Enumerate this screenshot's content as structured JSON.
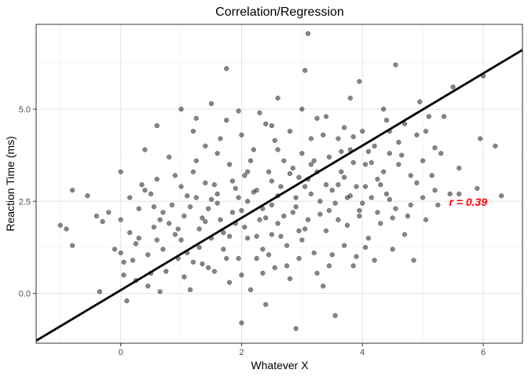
{
  "chart_data": {
    "type": "scatter",
    "title": "Correlation/Regression",
    "xlabel": "Whatever X",
    "ylabel": "Reaction Time (ms)",
    "xlim": [
      -1.4,
      6.65
    ],
    "ylim": [
      -1.35,
      7.3
    ],
    "x_ticks": [
      0,
      2,
      4,
      6
    ],
    "y_ticks": [
      0.0,
      2.5,
      5.0
    ],
    "x_tick_labels": [
      "0",
      "2",
      "4",
      "6"
    ],
    "y_tick_labels": [
      "0.0",
      "2.5",
      "5.0"
    ],
    "grid": true,
    "legend": "none",
    "regression_line": {
      "intercept": 0.09,
      "slope": 0.98
    },
    "annotation": {
      "text": "r = 0.39",
      "x": 5.75,
      "y": 2.48,
      "color": "#ff0000"
    },
    "point_color": "#333333",
    "point_opacity": 0.6,
    "series": [
      {
        "points": [
          [
            -1.0,
            1.85
          ],
          [
            -0.9,
            1.75
          ],
          [
            -0.8,
            2.8
          ],
          [
            -0.8,
            1.3
          ],
          [
            -0.55,
            2.65
          ],
          [
            -0.4,
            2.1
          ],
          [
            -0.35,
            0.05
          ],
          [
            -0.3,
            1.95
          ],
          [
            -0.2,
            2.2
          ],
          [
            -0.1,
            1.2
          ],
          [
            0.0,
            3.3
          ],
          [
            0.0,
            2.0
          ],
          [
            0.0,
            1.1
          ],
          [
            0.05,
            0.5
          ],
          [
            0.1,
            -0.2
          ],
          [
            0.15,
            2.6
          ],
          [
            0.2,
            0.9
          ],
          [
            0.3,
            2.3
          ],
          [
            0.3,
            1.5
          ],
          [
            0.4,
            3.9
          ],
          [
            0.4,
            2.8
          ],
          [
            0.45,
            0.2
          ],
          [
            0.5,
            2.7
          ],
          [
            0.55,
            1.8
          ],
          [
            0.6,
            4.55
          ],
          [
            0.6,
            3.1
          ],
          [
            0.65,
            2.0
          ],
          [
            0.7,
            1.2
          ],
          [
            0.75,
            0.6
          ],
          [
            0.8,
            3.7
          ],
          [
            0.85,
            2.4
          ],
          [
            0.9,
            1.6
          ],
          [
            0.95,
            0.95
          ],
          [
            1.0,
            5.0
          ],
          [
            1.0,
            2.9
          ],
          [
            1.05,
            2.1
          ],
          [
            1.1,
            1.1
          ],
          [
            1.15,
            0.1
          ],
          [
            1.2,
            4.4
          ],
          [
            1.2,
            3.3
          ],
          [
            1.25,
            2.6
          ],
          [
            1.3,
            1.75
          ],
          [
            1.35,
            0.8
          ],
          [
            1.4,
            4.0
          ],
          [
            1.4,
            3.0
          ],
          [
            1.45,
            2.3
          ],
          [
            1.5,
            1.5
          ],
          [
            1.5,
            5.15
          ],
          [
            1.55,
            0.6
          ],
          [
            1.6,
            3.8
          ],
          [
            1.6,
            2.7
          ],
          [
            1.65,
            2.0
          ],
          [
            1.7,
            1.2
          ],
          [
            1.75,
            6.1
          ],
          [
            1.75,
            4.7
          ],
          [
            1.8,
            3.5
          ],
          [
            1.8,
            0.3
          ],
          [
            1.85,
            2.2
          ],
          [
            1.9,
            1.9
          ],
          [
            1.95,
            0.95
          ],
          [
            2.0,
            -0.8
          ],
          [
            2.0,
            4.3
          ],
          [
            2.05,
            3.2
          ],
          [
            2.1,
            2.5
          ],
          [
            2.1,
            1.5
          ],
          [
            2.15,
            0.1
          ],
          [
            2.2,
            3.9
          ],
          [
            2.25,
            2.8
          ],
          [
            2.3,
            2.0
          ],
          [
            2.35,
            1.2
          ],
          [
            2.4,
            4.6
          ],
          [
            2.4,
            -0.3
          ],
          [
            2.45,
            3.3
          ],
          [
            2.5,
            2.4
          ],
          [
            2.5,
            1.6
          ],
          [
            2.55,
            0.7
          ],
          [
            2.6,
            5.3
          ],
          [
            2.6,
            3.9
          ],
          [
            2.65,
            2.9
          ],
          [
            2.7,
            2.1
          ],
          [
            2.75,
            1.3
          ],
          [
            2.8,
            4.4
          ],
          [
            2.8,
            0.4
          ],
          [
            2.85,
            3.4
          ],
          [
            2.9,
            2.6
          ],
          [
            2.9,
            -0.95
          ],
          [
            2.95,
            1.7
          ],
          [
            3.0,
            5.0
          ],
          [
            3.0,
            3.8
          ],
          [
            3.05,
            6.05
          ],
          [
            3.05,
            2.9
          ],
          [
            3.1,
            7.05
          ],
          [
            3.1,
            2.0
          ],
          [
            3.15,
            4.2
          ],
          [
            3.2,
            1.1
          ],
          [
            3.25,
            3.3
          ],
          [
            3.3,
            2.5
          ],
          [
            3.35,
            0.2
          ],
          [
            3.4,
            4.8
          ],
          [
            3.4,
            1.7
          ],
          [
            3.45,
            3.7
          ],
          [
            3.5,
            2.8
          ],
          [
            3.55,
            -0.6
          ],
          [
            3.6,
            4.2
          ],
          [
            3.6,
            2.0
          ],
          [
            3.65,
            3.3
          ],
          [
            3.7,
            1.3
          ],
          [
            3.75,
            2.6
          ],
          [
            3.8,
            5.3
          ],
          [
            3.8,
            3.9
          ],
          [
            3.85,
            0.75
          ],
          [
            3.9,
            2.9
          ],
          [
            3.95,
            5.75
          ],
          [
            3.95,
            2.1
          ],
          [
            4.0,
            4.4
          ],
          [
            4.05,
            3.5
          ],
          [
            4.1,
            1.5
          ],
          [
            4.15,
            2.6
          ],
          [
            4.2,
            4.0
          ],
          [
            4.25,
            3.1
          ],
          [
            4.3,
            1.9
          ],
          [
            4.35,
            5.0
          ],
          [
            4.4,
            2.7
          ],
          [
            4.45,
            3.8
          ],
          [
            4.5,
            1.2
          ],
          [
            4.55,
            6.2
          ],
          [
            4.55,
            2.3
          ],
          [
            4.6,
            3.5
          ],
          [
            4.7,
            4.6
          ],
          [
            4.75,
            2.1
          ],
          [
            4.8,
            3.2
          ],
          [
            4.85,
            0.9
          ],
          [
            4.9,
            4.3
          ],
          [
            5.0,
            2.6
          ],
          [
            5.0,
            3.6
          ],
          [
            5.05,
            2.0
          ],
          [
            5.1,
            4.8
          ],
          [
            5.2,
            2.8
          ],
          [
            5.3,
            3.8
          ],
          [
            5.45,
            2.7
          ],
          [
            5.5,
            5.6
          ],
          [
            5.6,
            2.7
          ],
          [
            5.6,
            3.4
          ],
          [
            5.9,
            2.85
          ],
          [
            5.95,
            4.2
          ],
          [
            6.0,
            5.9
          ],
          [
            6.2,
            4.0
          ],
          [
            6.3,
            2.65
          ],
          [
            0.25,
            1.35
          ],
          [
            0.35,
            2.95
          ],
          [
            0.5,
            0.55
          ],
          [
            0.7,
            2.2
          ],
          [
            0.8,
            1.9
          ],
          [
            0.9,
            3.2
          ],
          [
            1.05,
            0.45
          ],
          [
            1.15,
            2.35
          ],
          [
            1.25,
            3.6
          ],
          [
            1.3,
            1.25
          ],
          [
            1.45,
            0.7
          ],
          [
            1.55,
            2.95
          ],
          [
            1.65,
            4.2
          ],
          [
            1.7,
            1.65
          ],
          [
            1.85,
            3.05
          ],
          [
            1.95,
            2.6
          ],
          [
            2.0,
            0.5
          ],
          [
            2.05,
            1.8
          ],
          [
            2.15,
            3.6
          ],
          [
            2.25,
            0.95
          ],
          [
            2.3,
            4.9
          ],
          [
            2.35,
            2.3
          ],
          [
            2.45,
            1.05
          ],
          [
            2.55,
            4.15
          ],
          [
            2.6,
            1.9
          ],
          [
            2.7,
            3.6
          ],
          [
            2.75,
            0.75
          ],
          [
            2.85,
            2.2
          ],
          [
            2.95,
            3.15
          ],
          [
            3.0,
            1.45
          ],
          [
            3.15,
            2.7
          ],
          [
            3.2,
            3.6
          ],
          [
            3.25,
            0.55
          ],
          [
            3.35,
            4.3
          ],
          [
            3.45,
            2.25
          ],
          [
            3.5,
            1.05
          ],
          [
            3.6,
            2.95
          ],
          [
            3.7,
            4.5
          ],
          [
            3.75,
            1.85
          ],
          [
            3.85,
            3.55
          ],
          [
            3.9,
            1.0
          ],
          [
            4.0,
            2.45
          ],
          [
            4.1,
            3.85
          ],
          [
            4.2,
            0.9
          ],
          [
            4.3,
            2.95
          ],
          [
            4.4,
            4.7
          ],
          [
            4.5,
            2.05
          ],
          [
            4.6,
            4.1
          ],
          [
            4.7,
            1.6
          ],
          [
            4.8,
            2.4
          ],
          [
            4.9,
            3.0
          ],
          [
            5.05,
            4.4
          ],
          [
            5.15,
            3.2
          ],
          [
            5.25,
            2.4
          ],
          [
            5.35,
            4.8
          ],
          [
            0.15,
            1.65
          ],
          [
            0.6,
            1.45
          ],
          [
            1.0,
            1.45
          ],
          [
            1.35,
            2.05
          ],
          [
            1.6,
            2.45
          ],
          [
            1.9,
            2.85
          ],
          [
            2.2,
            2.75
          ],
          [
            2.5,
            3.05
          ],
          [
            2.8,
            3.25
          ],
          [
            3.1,
            3.1
          ],
          [
            3.4,
            2.95
          ],
          [
            3.7,
            3.15
          ],
          [
            4.05,
            2.9
          ],
          [
            4.35,
            3.3
          ],
          [
            0.45,
            1.05
          ],
          [
            0.95,
            1.75
          ],
          [
            1.4,
            1.95
          ],
          [
            1.8,
            1.55
          ],
          [
            2.25,
            1.55
          ],
          [
            2.65,
            1.55
          ],
          [
            3.05,
            1.75
          ],
          [
            3.55,
            2.45
          ],
          [
            3.95,
            2.25
          ],
          [
            4.45,
            2.55
          ],
          [
            1.1,
            2.65
          ],
          [
            1.5,
            2.55
          ],
          [
            2.0,
            2.25
          ],
          [
            2.4,
            2.05
          ],
          [
            2.9,
            2.35
          ],
          [
            3.3,
            2.15
          ],
          [
            3.8,
            2.65
          ],
          [
            4.25,
            2.2
          ],
          [
            0.55,
            2.35
          ],
          [
            2.1,
            3.3
          ],
          [
            2.6,
            2.65
          ],
          [
            3.15,
            3.5
          ],
          [
            3.65,
            3.85
          ],
          [
            4.15,
            3.55
          ],
          [
            4.65,
            3.75
          ],
          [
            5.2,
            3.95
          ],
          [
            1.2,
            0.85
          ],
          [
            1.75,
            0.95
          ],
          [
            2.35,
            0.55
          ],
          [
            2.95,
            0.95
          ],
          [
            3.45,
            0.75
          ],
          [
            4.05,
            1.25
          ],
          [
            0.05,
            0.85
          ],
          [
            0.25,
            0.35
          ],
          [
            0.65,
            0.05
          ],
          [
            1.25,
            4.75
          ],
          [
            1.95,
            4.95
          ],
          [
            2.5,
            4.55
          ],
          [
            3.25,
            4.75
          ],
          [
            3.85,
            4.25
          ],
          [
            4.45,
            4.4
          ],
          [
            4.95,
            5.2
          ]
        ]
      }
    ]
  }
}
